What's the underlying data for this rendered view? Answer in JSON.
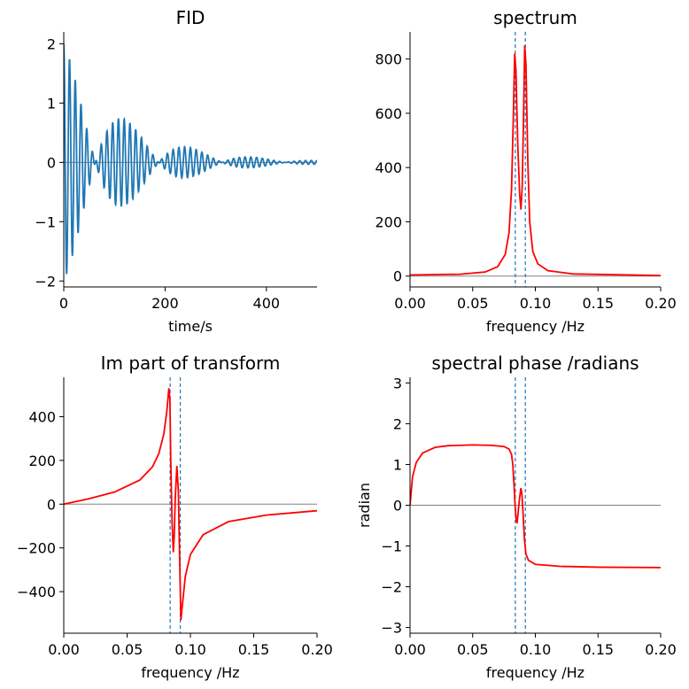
{
  "chart_data": [
    {
      "type": "line",
      "title": "FID",
      "xlabel": "time/s",
      "ylabel": "",
      "xlim": [
        0,
        500
      ],
      "ylim": [
        -2.1,
        2.2
      ],
      "xticks": [
        "0",
        "200",
        "400"
      ],
      "yticks": [
        "−2",
        "−1",
        "0",
        "1",
        "2"
      ],
      "baseline": 0,
      "series": [
        {
          "color": "#1f77b4",
          "model": "two decaying sinusoids",
          "freqs": [
            0.084,
            0.092
          ],
          "amplitudes": [
            1.0,
            1.0
          ],
          "decay_time": 120
        }
      ]
    },
    {
      "type": "line",
      "title": "spectrum",
      "xlabel": "frequency /Hz",
      "ylabel": "",
      "xlim": [
        0.0,
        0.2
      ],
      "ylim": [
        -40,
        900
      ],
      "xticks": [
        "0.00",
        "0.05",
        "0.10",
        "0.15",
        "0.20"
      ],
      "yticks": [
        "0",
        "200",
        "400",
        "600",
        "800"
      ],
      "baseline": 0,
      "vlines": [
        0.084,
        0.092
      ],
      "series": [
        {
          "color": "#ff0000",
          "points": [
            [
              0,
              4
            ],
            [
              0.04,
              7
            ],
            [
              0.06,
              15
            ],
            [
              0.07,
              35
            ],
            [
              0.076,
              80
            ],
            [
              0.079,
              160
            ],
            [
              0.081,
              320
            ],
            [
              0.0825,
              600
            ],
            [
              0.0835,
              820
            ],
            [
              0.0845,
              760
            ],
            [
              0.086,
              480
            ],
            [
              0.0875,
              300
            ],
            [
              0.0885,
              245
            ],
            [
              0.0895,
              330
            ],
            [
              0.0905,
              560
            ],
            [
              0.0915,
              850
            ],
            [
              0.0925,
              780
            ],
            [
              0.094,
              420
            ],
            [
              0.0955,
              200
            ],
            [
              0.098,
              90
            ],
            [
              0.102,
              45
            ],
            [
              0.11,
              20
            ],
            [
              0.13,
              8
            ],
            [
              0.2,
              2
            ]
          ]
        }
      ]
    },
    {
      "type": "line",
      "title": "Im part of transform",
      "xlabel": "frequency /Hz",
      "ylabel": "",
      "xlim": [
        0.0,
        0.2
      ],
      "ylim": [
        -590,
        580
      ],
      "xticks": [
        "0.00",
        "0.05",
        "0.10",
        "0.15",
        "0.20"
      ],
      "yticks": [
        "−400",
        "−200",
        "0",
        "200",
        "400"
      ],
      "baseline": 0,
      "vlines": [
        0.084,
        0.092
      ],
      "series": [
        {
          "color": "#ff0000",
          "points": [
            [
              0,
              0
            ],
            [
              0.02,
              25
            ],
            [
              0.04,
              55
            ],
            [
              0.06,
              110
            ],
            [
              0.07,
              170
            ],
            [
              0.075,
              230
            ],
            [
              0.079,
              320
            ],
            [
              0.0815,
              430
            ],
            [
              0.083,
              530
            ],
            [
              0.0838,
              480
            ],
            [
              0.0845,
              200
            ],
            [
              0.0855,
              -80
            ],
            [
              0.0865,
              -220
            ],
            [
              0.0872,
              -150
            ],
            [
              0.088,
              20
            ],
            [
              0.0893,
              175
            ],
            [
              0.0905,
              60
            ],
            [
              0.0915,
              -250
            ],
            [
              0.0925,
              -530
            ],
            [
              0.0935,
              -470
            ],
            [
              0.096,
              -330
            ],
            [
              0.1,
              -230
            ],
            [
              0.11,
              -140
            ],
            [
              0.13,
              -80
            ],
            [
              0.16,
              -50
            ],
            [
              0.2,
              -30
            ]
          ]
        }
      ]
    },
    {
      "type": "line",
      "title": "spectral phase /radians",
      "xlabel": "frequency /Hz",
      "ylabel": "radian",
      "xlim": [
        0.0,
        0.2
      ],
      "ylim": [
        -3.14,
        3.14
      ],
      "xticks": [
        "0.00",
        "0.05",
        "0.10",
        "0.15",
        "0.20"
      ],
      "yticks": [
        "−3",
        "−2",
        "−1",
        "0",
        "1",
        "2",
        "3"
      ],
      "baseline": 0,
      "vlines": [
        0.084,
        0.092
      ],
      "series": [
        {
          "color": "#ff0000",
          "points": [
            [
              0,
              0
            ],
            [
              0.002,
              0.7
            ],
            [
              0.005,
              1.05
            ],
            [
              0.01,
              1.28
            ],
            [
              0.02,
              1.42
            ],
            [
              0.03,
              1.46
            ],
            [
              0.05,
              1.48
            ],
            [
              0.065,
              1.47
            ],
            [
              0.075,
              1.44
            ],
            [
              0.079,
              1.38
            ],
            [
              0.081,
              1.25
            ],
            [
              0.082,
              1.0
            ],
            [
              0.083,
              0.5
            ],
            [
              0.0838,
              0.0
            ],
            [
              0.0848,
              -0.4
            ],
            [
              0.0855,
              -0.42
            ],
            [
              0.0865,
              -0.1
            ],
            [
              0.0875,
              0.2
            ],
            [
              0.0885,
              0.42
            ],
            [
              0.0892,
              0.3
            ],
            [
              0.0902,
              -0.2
            ],
            [
              0.0912,
              -0.8
            ],
            [
              0.0925,
              -1.2
            ],
            [
              0.0945,
              -1.35
            ],
            [
              0.1,
              -1.45
            ],
            [
              0.12,
              -1.5
            ],
            [
              0.15,
              -1.52
            ],
            [
              0.2,
              -1.53
            ]
          ]
        }
      ]
    }
  ]
}
